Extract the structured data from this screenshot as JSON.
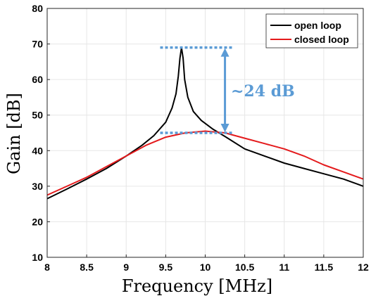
{
  "chart_data": {
    "type": "line",
    "xlabel": "Frequency [MHz]",
    "ylabel": "Gain [dB]",
    "xlim": [
      8,
      12
    ],
    "ylim": [
      10,
      80
    ],
    "x_ticks": [
      "8",
      "8.5",
      "9",
      "9.5",
      "10",
      "10.5",
      "11",
      "11.5",
      "12"
    ],
    "y_ticks": [
      "10",
      "20",
      "30",
      "40",
      "50",
      "60",
      "70",
      "80"
    ],
    "grid": true,
    "legend_position": "top-right",
    "series": [
      {
        "name": "open loop",
        "color": "#000000",
        "x": [
          8.0,
          8.25,
          8.5,
          8.75,
          9.0,
          9.2,
          9.35,
          9.5,
          9.58,
          9.63,
          9.66,
          9.68,
          9.7,
          9.72,
          9.74,
          9.78,
          9.85,
          9.95,
          10.1,
          10.25,
          10.5,
          10.75,
          11.0,
          11.25,
          11.5,
          11.75,
          12.0
        ],
        "y": [
          26.5,
          29.2,
          32.0,
          35.0,
          38.5,
          41.5,
          44.2,
          48.0,
          52.0,
          56.0,
          61.0,
          66.0,
          69.0,
          66.0,
          60.0,
          55.0,
          51.0,
          48.5,
          46.0,
          44.0,
          40.5,
          38.5,
          36.5,
          35.0,
          33.5,
          32.0,
          30.0
        ]
      },
      {
        "name": "closed loop",
        "color": "#e41a1c",
        "x": [
          8.0,
          8.25,
          8.5,
          8.75,
          9.0,
          9.25,
          9.5,
          9.75,
          10.0,
          10.25,
          10.5,
          10.75,
          11.0,
          11.25,
          11.5,
          11.75,
          12.0
        ],
        "y": [
          27.5,
          30.0,
          32.5,
          35.5,
          38.5,
          41.5,
          43.8,
          45.0,
          45.5,
          45.0,
          43.5,
          42.0,
          40.5,
          38.5,
          36.0,
          34.0,
          32.0
        ]
      }
    ],
    "annotations": {
      "top_level_db": 69,
      "bottom_level_db": 45,
      "line_x_range": [
        9.43,
        10.35
      ],
      "arrow_x": 10.25,
      "label": "~24 dB",
      "color": "#5b9bd5"
    }
  }
}
